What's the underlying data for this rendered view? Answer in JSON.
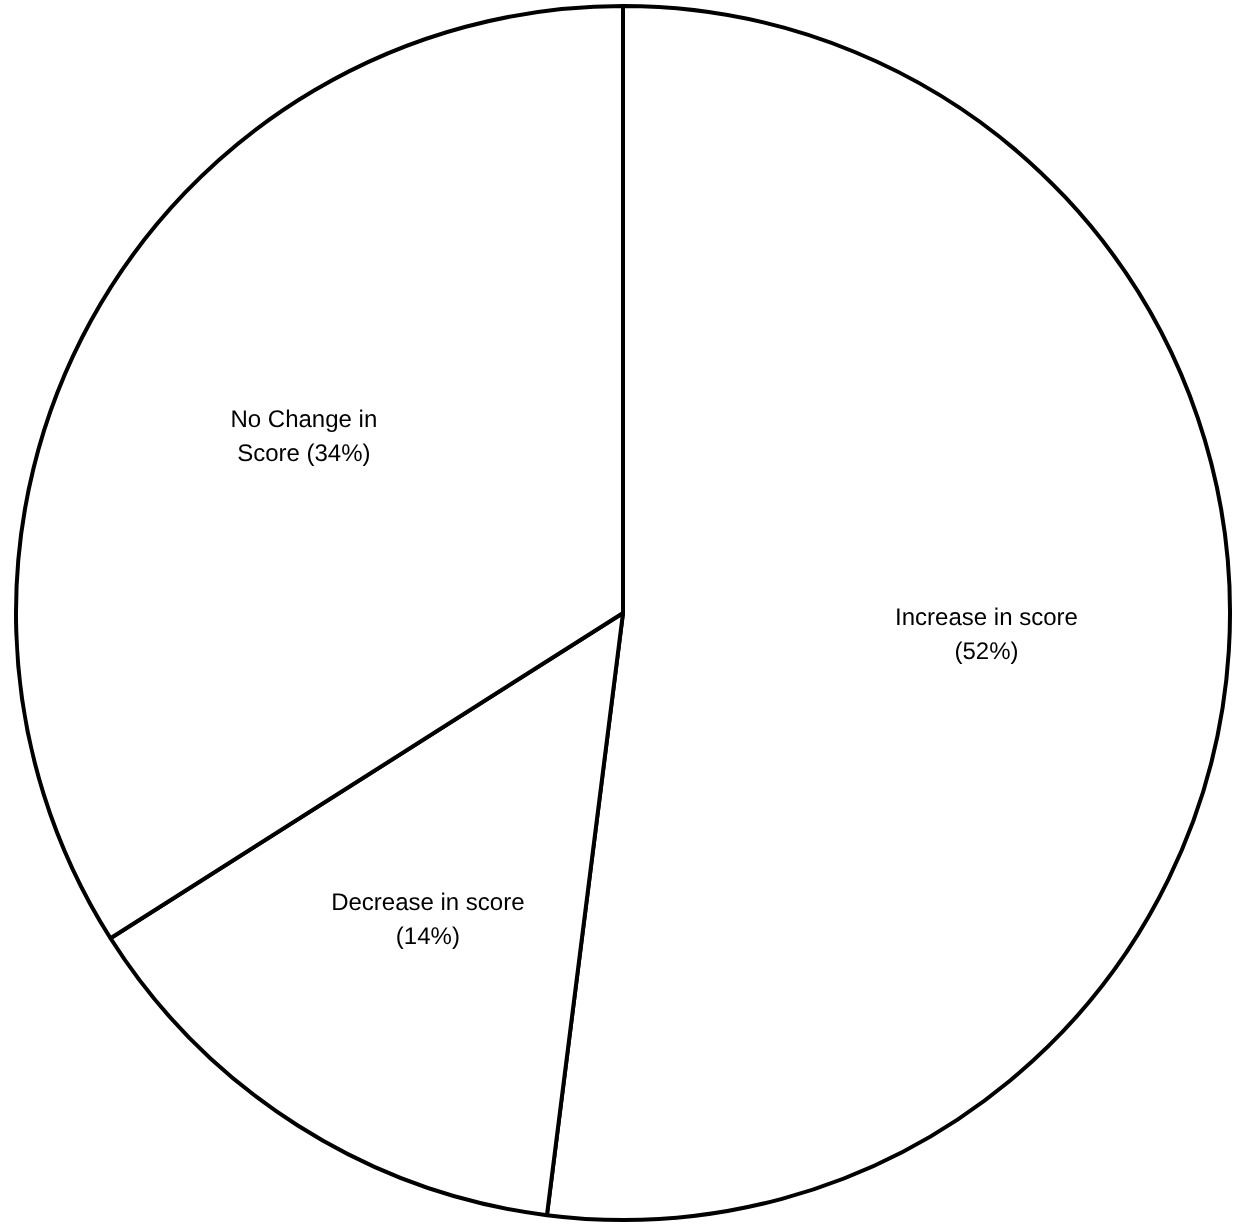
{
  "chart_data": {
    "type": "pie",
    "categories": [
      "Increase in score",
      "Decrease in score",
      "No Change in Score"
    ],
    "values": [
      52,
      14,
      34
    ],
    "value_labels": [
      "(52%)",
      "(14%)",
      "(34%)"
    ],
    "colors": [
      "#ffffff",
      "#ffffff",
      "#ffffff"
    ],
    "legend": false
  }
}
